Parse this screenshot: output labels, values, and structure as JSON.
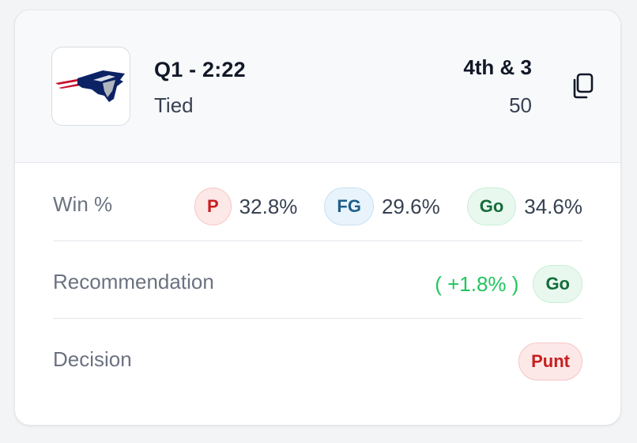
{
  "header": {
    "team_logo": "patriots-logo",
    "game_clock": "Q1 - 2:22",
    "game_status": "Tied",
    "down_distance": "4th & 3",
    "yardline": "50",
    "copy_icon": "copy-icon"
  },
  "win_pct": {
    "label": "Win %",
    "options": [
      {
        "badge": "P",
        "value": "32.8%",
        "color": "#c81e1e"
      },
      {
        "badge": "FG",
        "value": "29.6%",
        "color": "#1e5f8a"
      },
      {
        "badge": "Go",
        "value": "34.6%",
        "color": "#146c3a"
      }
    ]
  },
  "recommendation": {
    "label": "Recommendation",
    "delta": "( +1.8% )",
    "badge": "Go",
    "delta_color": "#22c55e"
  },
  "decision": {
    "label": "Decision",
    "badge": "Punt"
  }
}
